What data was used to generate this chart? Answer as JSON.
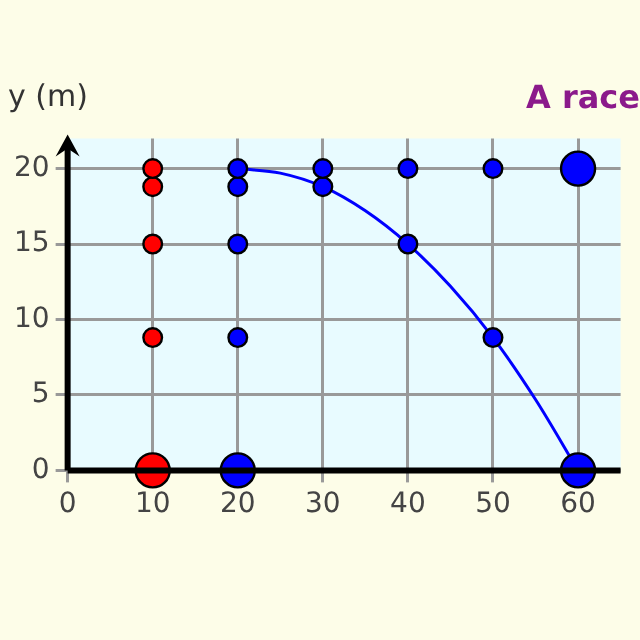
{
  "chart_data": {
    "type": "bubble",
    "title": "A race",
    "ylabel": "y (m)",
    "xlim": [
      0,
      65
    ],
    "ylim": [
      0,
      22
    ],
    "xticks": [
      0,
      10,
      20,
      30,
      40,
      50,
      60
    ],
    "yticks": [
      0,
      5,
      10,
      15,
      20
    ],
    "grid": true,
    "legend": false,
    "series": [
      {
        "type": "line",
        "color": "#0000ff",
        "marker": "none",
        "x": [
          20,
          25,
          30,
          35,
          40,
          45,
          50,
          55,
          60
        ],
        "values": [
          20,
          19.7,
          18.8,
          17.2,
          15,
          12.2,
          8.8,
          4.7,
          0
        ]
      },
      {
        "type": "bubble",
        "color": "#ff0000",
        "x": [
          10,
          10,
          10,
          10,
          10
        ],
        "values": [
          0,
          8.8,
          15,
          18.8,
          20
        ],
        "sizes": [
          1,
          0.3,
          0.3,
          0.3,
          0.3
        ]
      },
      {
        "type": "bubble",
        "color": "#0000ff",
        "x": [
          20,
          20,
          20,
          20,
          20,
          30,
          30,
          40,
          40,
          50,
          50,
          60,
          60
        ],
        "values": [
          0,
          8.8,
          15,
          18.8,
          20,
          18.8,
          20,
          15,
          20,
          8.8,
          20,
          0,
          20
        ],
        "sizes": [
          1,
          0.3,
          0.3,
          0.3,
          0.3,
          0.3,
          0.3,
          0.3,
          0.3,
          0.3,
          0.3,
          1,
          1
        ]
      }
    ]
  }
}
